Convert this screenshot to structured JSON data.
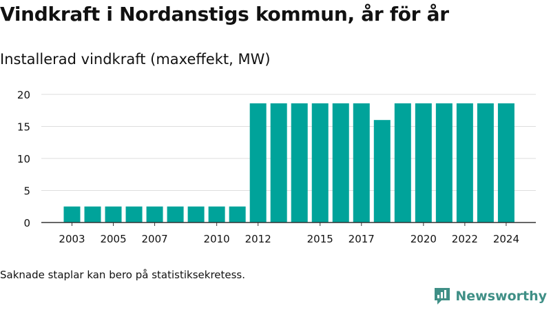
{
  "header": {
    "title": "Vindkraft i Nordanstigs kommun, år för år",
    "subtitle": "Installerad vindkraft (maxeffekt, MW)"
  },
  "footer": {
    "note": "Saknade staplar kan bero på statistiksekretess.",
    "brand": "Newsworthy"
  },
  "colors": {
    "bar": "#00a39a",
    "grid": "#dddddd",
    "axis": "#333333",
    "brand": "#3f8f86"
  },
  "icons": {
    "brand_logo": "newsworthy-logo-icon"
  },
  "chart_data": {
    "type": "bar",
    "categories": [
      2003,
      2004,
      2005,
      2006,
      2007,
      2008,
      2009,
      2010,
      2011,
      2012,
      2013,
      2014,
      2015,
      2016,
      2017,
      2018,
      2019,
      2020,
      2021,
      2022,
      2023,
      2024
    ],
    "values": [
      2.5,
      2.5,
      2.5,
      2.5,
      2.5,
      2.5,
      2.5,
      2.5,
      2.5,
      18.6,
      18.6,
      18.6,
      18.6,
      18.6,
      18.6,
      16,
      18.6,
      18.6,
      18.6,
      18.6,
      18.6,
      18.6
    ],
    "x_tick_labels": [
      "2003",
      "2005",
      "2007",
      "2010",
      "2012",
      "2015",
      "2017",
      "2020",
      "2022",
      "2024"
    ],
    "y_ticks": [
      0,
      5,
      10,
      15,
      20
    ],
    "ylim": [
      0,
      20
    ],
    "title": "Vindkraft i Nordanstigs kommun, år för år",
    "subtitle": "Installerad vindkraft (maxeffekt, MW)",
    "xlabel": "",
    "ylabel": "",
    "grid": true,
    "legend": false
  }
}
